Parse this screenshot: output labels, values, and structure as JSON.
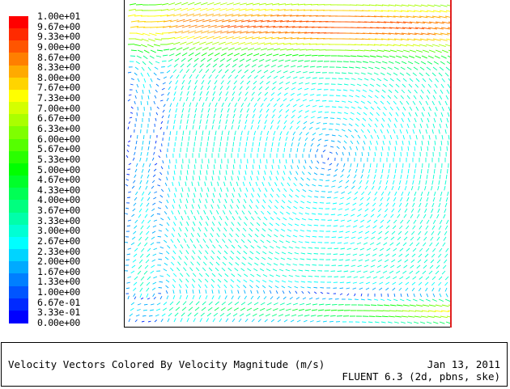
{
  "legend": {
    "labels": [
      "1.00e+01",
      "9.67e+00",
      "9.33e+00",
      "9.00e+00",
      "8.67e+00",
      "8.33e+00",
      "8.00e+00",
      "7.67e+00",
      "7.33e+00",
      "7.00e+00",
      "6.67e+00",
      "6.33e+00",
      "6.00e+00",
      "5.67e+00",
      "5.33e+00",
      "5.00e+00",
      "4.67e+00",
      "4.33e+00",
      "4.00e+00",
      "3.67e+00",
      "3.33e+00",
      "3.00e+00",
      "2.67e+00",
      "2.33e+00",
      "2.00e+00",
      "1.67e+00",
      "1.33e+00",
      "1.00e+00",
      "6.67e-01",
      "3.33e-01",
      "0.00e+00"
    ],
    "colors": [
      "#ff0000",
      "#ff2a00",
      "#ff5500",
      "#ff7f00",
      "#ffaa00",
      "#ffd400",
      "#ffff00",
      "#d4ff00",
      "#aaff00",
      "#7fff00",
      "#55ff00",
      "#2aff00",
      "#00ff00",
      "#00ff2a",
      "#00ff55",
      "#00ff7f",
      "#00ffaa",
      "#00ffd4",
      "#00ffff",
      "#00d4ff",
      "#00aaff",
      "#007fff",
      "#0055ff",
      "#002aff",
      "#0000ff"
    ],
    "min": 0,
    "max": 10
  },
  "caption": {
    "title": "Velocity Vectors Colored By Velocity Magnitude (m/s)",
    "date": "Jan 13, 2011",
    "solver": "FLUENT 6.3 (2d, pbns, ske)"
  }
}
